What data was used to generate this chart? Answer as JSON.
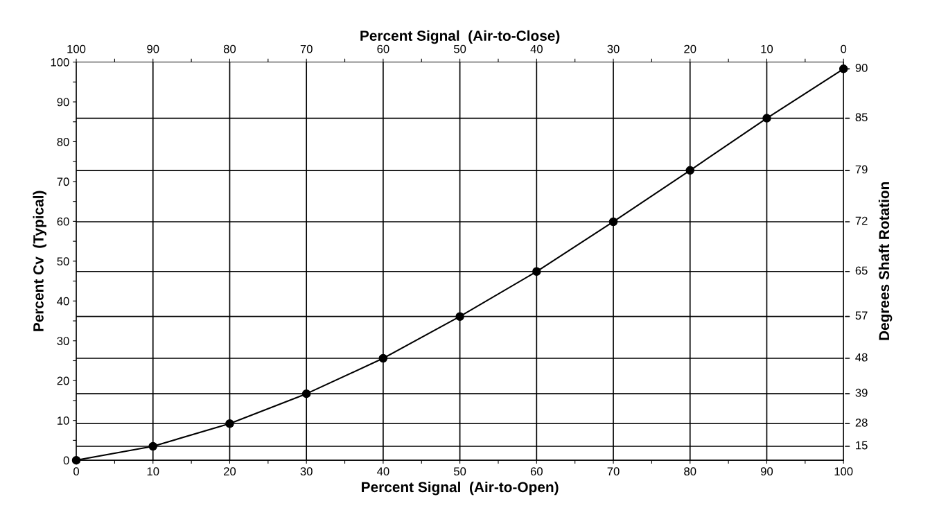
{
  "chart_data": {
    "type": "line",
    "xlabel": "Percent Signal  (Air-to-Open)",
    "ylabel": "Percent Cv  (Typical)",
    "y2label": "Degrees Shaft Rotation",
    "x2label": "Percent Signal  (Air-to-Close)",
    "x": [
      0,
      10,
      20,
      30,
      40,
      50,
      60,
      70,
      80,
      90,
      100
    ],
    "series": [
      {
        "color": "#000000",
        "values": [
          0,
          3.5,
          9.2,
          16.7,
          25.6,
          36.1,
          47.4,
          59.9,
          72.8,
          85.9,
          98.3
        ]
      }
    ],
    "marker": "circle",
    "line_style": "solid",
    "grid": false,
    "xlim": [
      0,
      100
    ],
    "xticks": [
      0,
      {
        "value": 5,
        "label": null
      },
      10,
      {
        "value": 15,
        "label": null
      },
      20,
      {
        "value": 25,
        "label": null
      },
      30,
      {
        "value": 35,
        "label": null
      },
      40,
      {
        "value": 45,
        "label": null
      },
      50,
      {
        "value": 55,
        "label": null
      },
      60,
      {
        "value": 65,
        "label": null
      },
      70,
      {
        "value": 75,
        "label": null
      },
      80,
      {
        "value": 85,
        "label": null
      },
      90,
      {
        "value": 95,
        "label": null
      },
      100
    ],
    "x2lim": [
      100,
      0
    ],
    "x2ticks": [
      100,
      {
        "value": 95,
        "label": null
      },
      90,
      {
        "value": 85,
        "label": null
      },
      80,
      {
        "value": 75,
        "label": null
      },
      70,
      {
        "value": 65,
        "label": null
      },
      60,
      {
        "value": 55,
        "label": null
      },
      50,
      {
        "value": 45,
        "label": null
      },
      40,
      {
        "value": 35,
        "label": null
      },
      30,
      {
        "value": 25,
        "label": null
      },
      20,
      {
        "value": 15,
        "label": null
      },
      10,
      {
        "value": 5,
        "label": null
      },
      0
    ],
    "ylim": [
      0,
      100
    ],
    "yticks": [
      0,
      {
        "value": 5,
        "label": null
      },
      10,
      {
        "value": 15,
        "label": null
      },
      20,
      {
        "value": 25,
        "label": null
      },
      30,
      {
        "value": 35,
        "label": null
      },
      40,
      {
        "value": 45,
        "label": null
      },
      50,
      {
        "value": 55,
        "label": null
      },
      60,
      {
        "value": 65,
        "label": null
      },
      70,
      {
        "value": 75,
        "label": null
      },
      80,
      {
        "value": 85,
        "label": null
      },
      90,
      {
        "value": 95,
        "label": null
      },
      100
    ],
    "ref_lines": [
      {
        "axis": "x",
        "value": 10
      },
      {
        "axis": "x",
        "value": 20
      },
      {
        "axis": "x",
        "value": 30
      },
      {
        "axis": "x",
        "value": 40
      },
      {
        "axis": "x",
        "value": 50
      },
      {
        "axis": "x",
        "value": 60
      },
      {
        "axis": "x",
        "value": 70
      },
      {
        "axis": "x",
        "value": 80
      },
      {
        "axis": "x",
        "value": 90
      },
      {
        "axis": "y",
        "value": 3.5
      },
      {
        "axis": "y",
        "value": 9.2
      },
      {
        "axis": "y",
        "value": 16.7
      },
      {
        "axis": "y",
        "value": 25.6
      },
      {
        "axis": "y",
        "value": 36.1
      },
      {
        "axis": "y",
        "value": 47.4
      },
      {
        "axis": "y",
        "value": 59.9
      },
      {
        "axis": "y",
        "value": 72.8
      },
      {
        "axis": "y",
        "value": 85.9
      }
    ],
    "annotations": [
      "15",
      "28",
      "39",
      "48",
      "57",
      "65",
      "72",
      "79",
      "85",
      "90"
    ]
  }
}
